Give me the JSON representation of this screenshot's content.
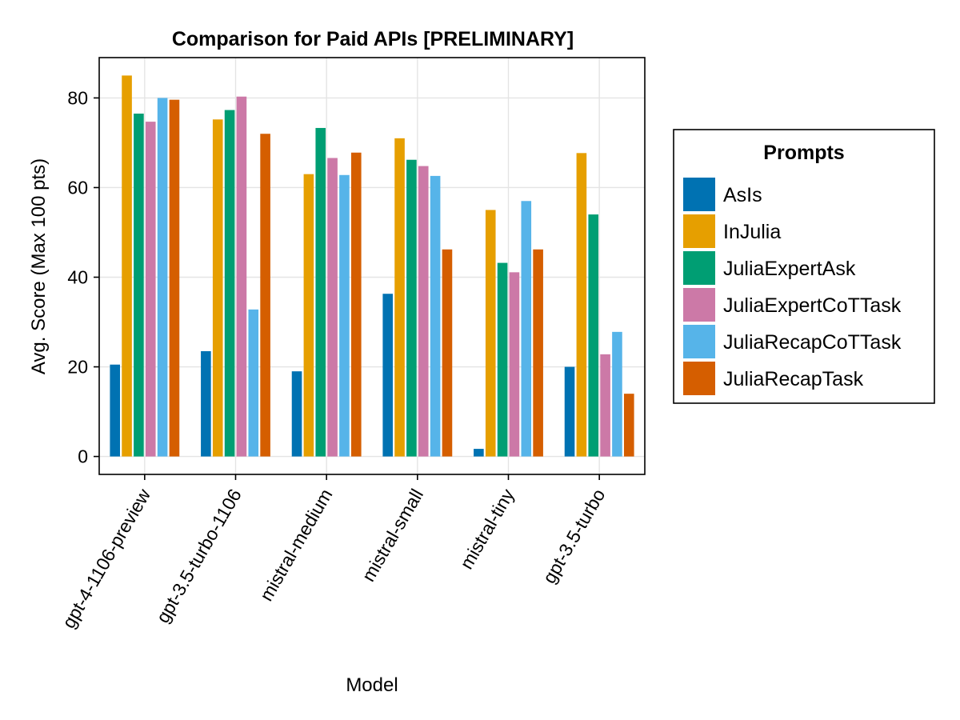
{
  "chart_data": {
    "type": "bar",
    "title": "Comparison for Paid APIs [PRELIMINARY]",
    "xlabel": "Model",
    "ylabel": "Avg. Score (Max 100 pts)",
    "ylim": [
      -4,
      89
    ],
    "yticks": [
      0,
      20,
      40,
      60,
      80
    ],
    "grid": true,
    "legend_title": "Prompts",
    "legend_position": "right",
    "categories": [
      "gpt-4-1106-preview",
      "gpt-3.5-turbo-1106",
      "mistral-medium",
      "mistral-small",
      "mistral-tiny",
      "gpt-3.5-turbo"
    ],
    "series": [
      {
        "name": "AsIs",
        "color": "#0072B2",
        "values": [
          20.5,
          23.5,
          19.0,
          36.3,
          1.7,
          20.0
        ]
      },
      {
        "name": "InJulia",
        "color": "#E69F00",
        "values": [
          85.0,
          75.2,
          63.0,
          71.0,
          55.0,
          67.7
        ]
      },
      {
        "name": "JuliaExpertAsk",
        "color": "#009E73",
        "values": [
          76.5,
          77.3,
          73.3,
          66.2,
          43.2,
          54.0
        ]
      },
      {
        "name": "JuliaExpertCoTTask",
        "color": "#CC79A7",
        "values": [
          74.7,
          80.3,
          66.6,
          64.8,
          41.1,
          22.8
        ]
      },
      {
        "name": "JuliaRecapCoTTask",
        "color": "#56B4E9",
        "values": [
          80.0,
          32.8,
          62.8,
          62.6,
          57.0,
          27.8
        ]
      },
      {
        "name": "JuliaRecapTask",
        "color": "#D55E00",
        "values": [
          79.6,
          72.0,
          67.8,
          46.2,
          46.2,
          14.0
        ]
      }
    ]
  }
}
